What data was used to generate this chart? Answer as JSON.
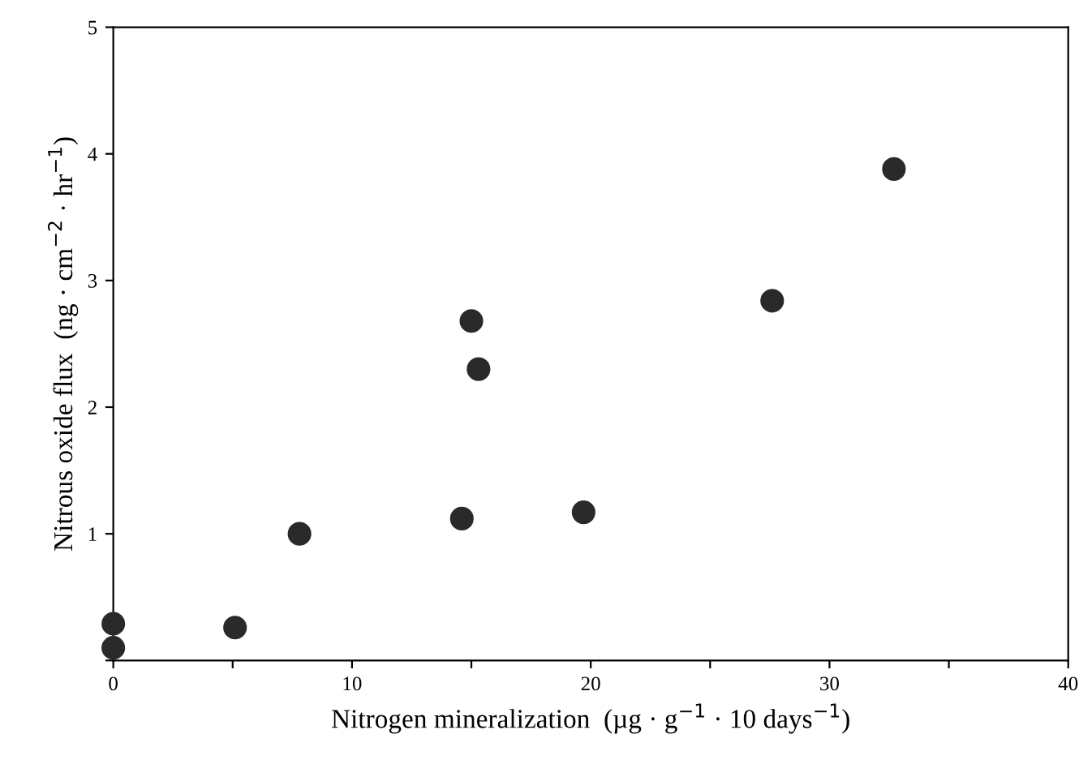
{
  "chart_data": {
    "type": "scatter",
    "xlabel": "Nitrogen mineralization  (µg · g$^{−1}$ · 10 days$^{−1}$)",
    "ylabel": "Nitrous oxide flux  (ng · cm$^{−2}$ · hr$^{−1}$)",
    "x": [
      0,
      0,
      5.1,
      7.8,
      14.6,
      15.0,
      15.3,
      19.7,
      27.6,
      32.7
    ],
    "values": [
      0.29,
      0.1,
      0.26,
      1.0,
      1.12,
      2.68,
      2.3,
      1.17,
      2.84,
      3.88
    ],
    "color": "#2a2a2a",
    "marker": "circle",
    "xlim": [
      0,
      40
    ],
    "ylim": [
      0,
      5
    ],
    "xticks": [
      0,
      {
        "value": 5,
        "label": null
      },
      10,
      {
        "value": 15,
        "label": null
      },
      20,
      {
        "value": 25,
        "label": null
      },
      30,
      {
        "value": 35,
        "label": null
      },
      40
    ],
    "yticks": [
      {
        "value": 0,
        "label": null
      },
      1,
      2,
      3,
      4,
      5
    ],
    "grid": false
  }
}
